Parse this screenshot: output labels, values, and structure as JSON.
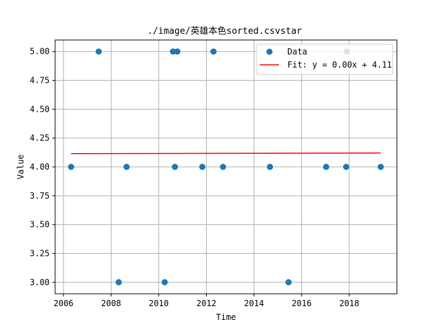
{
  "chart_data": {
    "type": "scatter",
    "title": "./image/英雄本色sorted.csvstar",
    "xlabel": "Time",
    "ylabel": "Value",
    "xlim": [
      2005.65,
      2020.0
    ],
    "ylim": [
      2.9,
      5.1
    ],
    "x_ticks": [
      2006,
      2008,
      2010,
      2012,
      2014,
      2016,
      2018
    ],
    "x_tick_labels": [
      "2006",
      "2008",
      "2010",
      "2012",
      "2014",
      "2016",
      "2018"
    ],
    "y_ticks": [
      3.0,
      3.25,
      3.5,
      3.75,
      4.0,
      4.25,
      4.5,
      4.75,
      5.0
    ],
    "y_tick_labels": [
      "3.00",
      "3.25",
      "3.50",
      "3.75",
      "4.00",
      "4.25",
      "4.50",
      "4.75",
      "5.00"
    ],
    "grid": true,
    "legend_position": "top-right",
    "series": [
      {
        "name": "Data",
        "kind": "scatter",
        "color": "#1f77b4",
        "points": [
          {
            "x": 2006.32,
            "y": 4.0
          },
          {
            "x": 2007.48,
            "y": 5.0
          },
          {
            "x": 2008.32,
            "y": 3.0
          },
          {
            "x": 2008.65,
            "y": 4.0
          },
          {
            "x": 2010.25,
            "y": 3.0
          },
          {
            "x": 2010.6,
            "y": 5.0
          },
          {
            "x": 2010.68,
            "y": 4.0
          },
          {
            "x": 2010.78,
            "y": 5.0
          },
          {
            "x": 2011.83,
            "y": 4.0
          },
          {
            "x": 2012.3,
            "y": 5.0
          },
          {
            "x": 2012.7,
            "y": 4.0
          },
          {
            "x": 2014.67,
            "y": 4.0
          },
          {
            "x": 2015.45,
            "y": 3.0
          },
          {
            "x": 2017.03,
            "y": 4.0
          },
          {
            "x": 2017.87,
            "y": 4.0
          },
          {
            "x": 2017.9,
            "y": 5.0
          },
          {
            "x": 2019.32,
            "y": 4.0
          }
        ]
      },
      {
        "name": "Fit: y = 0.00x + 4.11",
        "kind": "line",
        "color": "#ff0000",
        "points": [
          {
            "x": 2006.32,
            "y": 4.115
          },
          {
            "x": 2019.32,
            "y": 4.12
          }
        ]
      }
    ]
  }
}
